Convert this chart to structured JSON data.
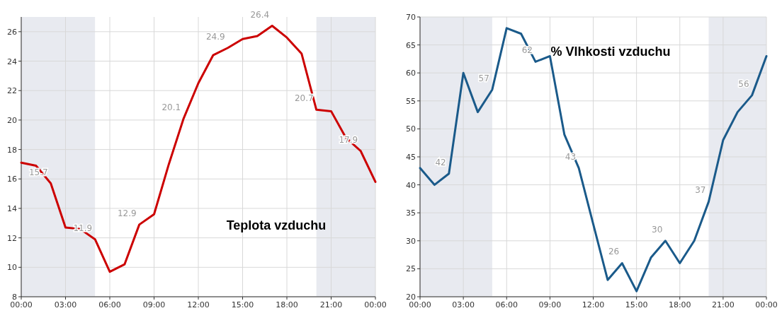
{
  "chart_data": [
    {
      "type": "line",
      "annotations": [
        "Teplota vzduchu"
      ],
      "x": [
        0,
        1,
        2,
        3,
        4,
        5,
        6,
        7,
        8,
        9,
        10,
        11,
        12,
        13,
        14,
        15,
        16,
        17,
        18,
        19,
        20,
        21,
        22,
        23,
        24
      ],
      "series": [
        {
          "color": "#cc0000",
          "values": [
            17.1,
            16.9,
            15.7,
            12.7,
            12.6,
            11.9,
            9.7,
            10.2,
            12.9,
            13.6,
            17.0,
            20.1,
            22.5,
            24.4,
            24.9,
            25.5,
            25.7,
            26.4,
            25.6,
            24.5,
            20.7,
            20.6,
            18.8,
            17.9,
            15.8
          ],
          "value_labels": [
            null,
            null,
            "15.7",
            null,
            null,
            "11.9",
            null,
            null,
            "12.9",
            null,
            null,
            "20.1",
            null,
            null,
            "24.9",
            null,
            null,
            "26.4",
            null,
            null,
            "20.7",
            null,
            null,
            "17.9",
            null
          ]
        }
      ],
      "xlim": [
        0,
        24
      ],
      "xticks": [
        {
          "value": 0,
          "label": "00:00"
        },
        {
          "value": 3,
          "label": "03:00"
        },
        {
          "value": 6,
          "label": "06:00"
        },
        {
          "value": 9,
          "label": "09:00"
        },
        {
          "value": 12,
          "label": "12:00"
        },
        {
          "value": 15,
          "label": "15:00"
        },
        {
          "value": 18,
          "label": "18:00"
        },
        {
          "value": 21,
          "label": "21:00"
        },
        {
          "value": 24,
          "label": "00:00"
        }
      ],
      "ylim": [
        8,
        27
      ],
      "yticks": [
        8,
        10,
        12,
        14,
        16,
        18,
        20,
        22,
        24,
        26
      ],
      "bands": [
        {
          "axis": "x",
          "from": 0,
          "to": 5,
          "color": "#e8eaf0"
        },
        {
          "axis": "x",
          "from": 20,
          "to": 24,
          "color": "#e8eaf0"
        }
      ],
      "grid": true,
      "line_style": "solid"
    },
    {
      "type": "line",
      "annotations": [
        "% Vlhkosti vzduchu"
      ],
      "x": [
        0,
        1,
        2,
        3,
        4,
        5,
        6,
        7,
        8,
        9,
        10,
        11,
        12,
        13,
        14,
        15,
        16,
        17,
        18,
        19,
        20,
        21,
        22,
        23,
        24
      ],
      "series": [
        {
          "color": "#1a5a8a",
          "values": [
            43,
            40,
            42,
            60,
            53,
            57,
            68,
            67,
            62,
            63,
            49,
            43,
            33,
            23,
            26,
            21,
            27,
            30,
            26,
            30,
            37,
            48,
            53,
            56,
            63
          ],
          "value_labels": [
            null,
            null,
            "42",
            null,
            null,
            "57",
            null,
            null,
            "62",
            null,
            null,
            "43",
            null,
            null,
            "26",
            null,
            null,
            "30",
            null,
            null,
            "37",
            null,
            null,
            "56",
            null
          ]
        }
      ],
      "xlim": [
        0,
        24
      ],
      "xticks": [
        {
          "value": 0,
          "label": "00:00"
        },
        {
          "value": 3,
          "label": "03:00"
        },
        {
          "value": 6,
          "label": "06:00"
        },
        {
          "value": 9,
          "label": "09:00"
        },
        {
          "value": 12,
          "label": "12:00"
        },
        {
          "value": 15,
          "label": "15:00"
        },
        {
          "value": 18,
          "label": "18:00"
        },
        {
          "value": 21,
          "label": "21:00"
        },
        {
          "value": 24,
          "label": "00:00"
        }
      ],
      "ylim": [
        20,
        70
      ],
      "yticks": [
        20,
        25,
        30,
        35,
        40,
        45,
        50,
        55,
        60,
        65,
        70
      ],
      "bands": [
        {
          "axis": "x",
          "from": 0,
          "to": 5,
          "color": "#e8eaf0"
        },
        {
          "axis": "x",
          "from": 20,
          "to": 24,
          "color": "#e8eaf0"
        }
      ],
      "grid": true,
      "line_style": "solid"
    }
  ]
}
